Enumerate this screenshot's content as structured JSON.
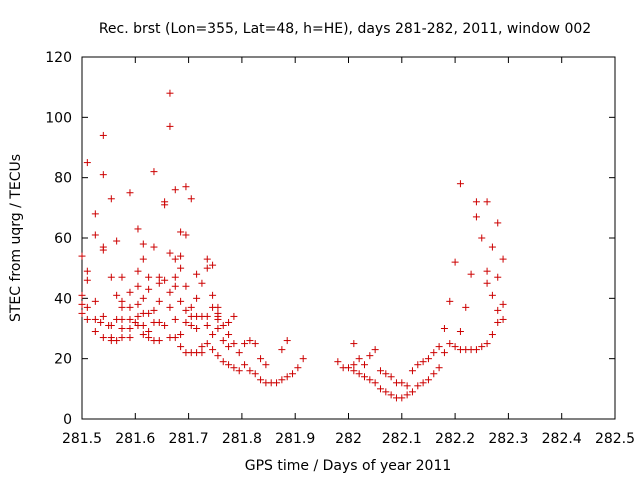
{
  "chart_data": {
    "type": "scatter",
    "title": "Rec. brst (Lon=355, Lat=48, h=HE), days 281-282, 2011, window 002",
    "xlabel": "GPS time / Days of year 2011",
    "ylabel": "STEC from uqrg / TECUs",
    "xlim": [
      281.5,
      282.5
    ],
    "ylim": [
      0,
      120
    ],
    "xticks": [
      281.5,
      281.6,
      281.7,
      281.8,
      281.9,
      282.0,
      282.1,
      282.2,
      282.3,
      282.4,
      282.5
    ],
    "xtick_labels": [
      "281.5",
      "281.6",
      "281.7",
      "281.8",
      "281.9",
      "282",
      "282.1",
      "282.2",
      "282.3",
      "282.4",
      "282.5"
    ],
    "yticks": [
      0,
      20,
      40,
      60,
      80,
      100,
      120
    ],
    "ytick_labels": [
      "0",
      "20",
      "40",
      "60",
      "80",
      "100",
      "120"
    ],
    "grid": false,
    "marker": "+",
    "marker_color": "#cc0000",
    "series": [
      {
        "points": [
          [
            281.5,
            54
          ],
          [
            281.5,
            41
          ],
          [
            281.5,
            38
          ],
          [
            281.5,
            35
          ],
          [
            281.51,
            49
          ],
          [
            281.51,
            46
          ],
          [
            281.51,
            37
          ],
          [
            281.51,
            33
          ],
          [
            281.51,
            85
          ],
          [
            281.525,
            68
          ],
          [
            281.525,
            61
          ],
          [
            281.525,
            39
          ],
          [
            281.525,
            33
          ],
          [
            281.525,
            29
          ],
          [
            281.535,
            32
          ],
          [
            281.54,
            94
          ],
          [
            281.54,
            81
          ],
          [
            281.54,
            56
          ],
          [
            281.54,
            57
          ],
          [
            281.54,
            34
          ],
          [
            281.54,
            27
          ],
          [
            281.55,
            31
          ],
          [
            281.555,
            73
          ],
          [
            281.555,
            47
          ],
          [
            281.555,
            31
          ],
          [
            281.555,
            27
          ],
          [
            281.555,
            26
          ],
          [
            281.565,
            59
          ],
          [
            281.565,
            41
          ],
          [
            281.565,
            33
          ],
          [
            281.565,
            26
          ],
          [
            281.575,
            47
          ],
          [
            281.575,
            39
          ],
          [
            281.575,
            37
          ],
          [
            281.575,
            33
          ],
          [
            281.575,
            30
          ],
          [
            281.575,
            27
          ],
          [
            281.59,
            75
          ],
          [
            281.59,
            42
          ],
          [
            281.59,
            37
          ],
          [
            281.59,
            33
          ],
          [
            281.59,
            30
          ],
          [
            281.59,
            27
          ],
          [
            281.6,
            32
          ],
          [
            281.605,
            63
          ],
          [
            281.605,
            49
          ],
          [
            281.605,
            44
          ],
          [
            281.605,
            38
          ],
          [
            281.605,
            34
          ],
          [
            281.605,
            31
          ],
          [
            281.615,
            58
          ],
          [
            281.615,
            53
          ],
          [
            281.615,
            40
          ],
          [
            281.615,
            35
          ],
          [
            281.615,
            31
          ],
          [
            281.615,
            28
          ],
          [
            281.625,
            47
          ],
          [
            281.625,
            43
          ],
          [
            281.625,
            35
          ],
          [
            281.625,
            29
          ],
          [
            281.625,
            27
          ],
          [
            281.635,
            82
          ],
          [
            281.635,
            57
          ],
          [
            281.635,
            36
          ],
          [
            281.635,
            32
          ],
          [
            281.635,
            26
          ],
          [
            281.645,
            47
          ],
          [
            281.645,
            45
          ],
          [
            281.645,
            39
          ],
          [
            281.645,
            32
          ],
          [
            281.645,
            26
          ],
          [
            281.655,
            72
          ],
          [
            281.655,
            71
          ],
          [
            281.655,
            46
          ],
          [
            281.655,
            31
          ],
          [
            281.665,
            108
          ],
          [
            281.665,
            97
          ],
          [
            281.665,
            55
          ],
          [
            281.665,
            42
          ],
          [
            281.665,
            37
          ],
          [
            281.665,
            27
          ],
          [
            281.675,
            76
          ],
          [
            281.675,
            53
          ],
          [
            281.675,
            47
          ],
          [
            281.675,
            44
          ],
          [
            281.675,
            33
          ],
          [
            281.675,
            27
          ],
          [
            281.685,
            62
          ],
          [
            281.685,
            54
          ],
          [
            281.685,
            50
          ],
          [
            281.685,
            39
          ],
          [
            281.685,
            28
          ],
          [
            281.685,
            24
          ],
          [
            281.695,
            77
          ],
          [
            281.695,
            61
          ],
          [
            281.695,
            44
          ],
          [
            281.695,
            36
          ],
          [
            281.695,
            32
          ],
          [
            281.695,
            22
          ],
          [
            281.705,
            73
          ],
          [
            281.705,
            37
          ],
          [
            281.705,
            34
          ],
          [
            281.705,
            31
          ],
          [
            281.705,
            22
          ],
          [
            281.715,
            48
          ],
          [
            281.715,
            40
          ],
          [
            281.715,
            34
          ],
          [
            281.715,
            30
          ],
          [
            281.715,
            22
          ],
          [
            281.725,
            45
          ],
          [
            281.725,
            34
          ],
          [
            281.725,
            24
          ],
          [
            281.725,
            22
          ],
          [
            281.735,
            50
          ],
          [
            281.735,
            53
          ],
          [
            281.735,
            34
          ],
          [
            281.735,
            31
          ],
          [
            281.735,
            25
          ],
          [
            281.745,
            51
          ],
          [
            281.745,
            41
          ],
          [
            281.745,
            37
          ],
          [
            281.745,
            28
          ],
          [
            281.745,
            23
          ],
          [
            281.755,
            37
          ],
          [
            281.755,
            35
          ],
          [
            281.755,
            34
          ],
          [
            281.755,
            33
          ],
          [
            281.755,
            30
          ],
          [
            281.755,
            21
          ],
          [
            281.765,
            31
          ],
          [
            281.765,
            26
          ],
          [
            281.765,
            19
          ],
          [
            281.775,
            32
          ],
          [
            281.775,
            28
          ],
          [
            281.775,
            24
          ],
          [
            281.775,
            18
          ],
          [
            281.785,
            34
          ],
          [
            281.785,
            25
          ],
          [
            281.785,
            17
          ],
          [
            281.795,
            22
          ],
          [
            281.795,
            16
          ],
          [
            281.805,
            25
          ],
          [
            281.805,
            18
          ],
          [
            281.815,
            26
          ],
          [
            281.815,
            16
          ],
          [
            281.825,
            25
          ],
          [
            281.825,
            15
          ],
          [
            281.835,
            20
          ],
          [
            281.835,
            13
          ],
          [
            281.845,
            18
          ],
          [
            281.845,
            12
          ],
          [
            281.855,
            12
          ],
          [
            281.865,
            12
          ],
          [
            281.875,
            23
          ],
          [
            281.875,
            13
          ],
          [
            281.885,
            26
          ],
          [
            281.885,
            14
          ],
          [
            281.895,
            15
          ],
          [
            281.905,
            17
          ],
          [
            281.915,
            20
          ],
          [
            281.98,
            19
          ],
          [
            281.99,
            17
          ],
          [
            282.0,
            17
          ],
          [
            282.01,
            25
          ],
          [
            282.01,
            18
          ],
          [
            282.01,
            16
          ],
          [
            282.02,
            20
          ],
          [
            282.02,
            15
          ],
          [
            282.03,
            18
          ],
          [
            282.03,
            14
          ],
          [
            282.04,
            21
          ],
          [
            282.04,
            13
          ],
          [
            282.05,
            23
          ],
          [
            282.05,
            12
          ],
          [
            282.06,
            16
          ],
          [
            282.06,
            10
          ],
          [
            282.07,
            15
          ],
          [
            282.07,
            9
          ],
          [
            282.08,
            14
          ],
          [
            282.08,
            8
          ],
          [
            282.09,
            12
          ],
          [
            282.09,
            7
          ],
          [
            282.1,
            12
          ],
          [
            282.1,
            7
          ],
          [
            282.11,
            11
          ],
          [
            282.11,
            8
          ],
          [
            282.12,
            16
          ],
          [
            282.12,
            9
          ],
          [
            282.13,
            18
          ],
          [
            282.13,
            11
          ],
          [
            282.14,
            19
          ],
          [
            282.14,
            12
          ],
          [
            282.15,
            20
          ],
          [
            282.15,
            13
          ],
          [
            282.16,
            22
          ],
          [
            282.16,
            15
          ],
          [
            282.17,
            24
          ],
          [
            282.17,
            17
          ],
          [
            282.18,
            30
          ],
          [
            282.18,
            22
          ],
          [
            282.19,
            39
          ],
          [
            282.19,
            25
          ],
          [
            282.2,
            52
          ],
          [
            282.2,
            24
          ],
          [
            282.21,
            78
          ],
          [
            282.21,
            29
          ],
          [
            282.21,
            23
          ],
          [
            282.22,
            37
          ],
          [
            282.22,
            23
          ],
          [
            282.23,
            48
          ],
          [
            282.23,
            23
          ],
          [
            282.24,
            72
          ],
          [
            282.24,
            67
          ],
          [
            282.24,
            23
          ],
          [
            282.25,
            60
          ],
          [
            282.25,
            24
          ],
          [
            282.26,
            72
          ],
          [
            282.26,
            49
          ],
          [
            282.26,
            45
          ],
          [
            282.26,
            25
          ],
          [
            282.27,
            57
          ],
          [
            282.27,
            41
          ],
          [
            282.27,
            28
          ],
          [
            282.28,
            65
          ],
          [
            282.28,
            47
          ],
          [
            282.28,
            36
          ],
          [
            282.28,
            32
          ],
          [
            282.29,
            53
          ],
          [
            282.29,
            38
          ],
          [
            282.29,
            33
          ]
        ]
      }
    ]
  }
}
